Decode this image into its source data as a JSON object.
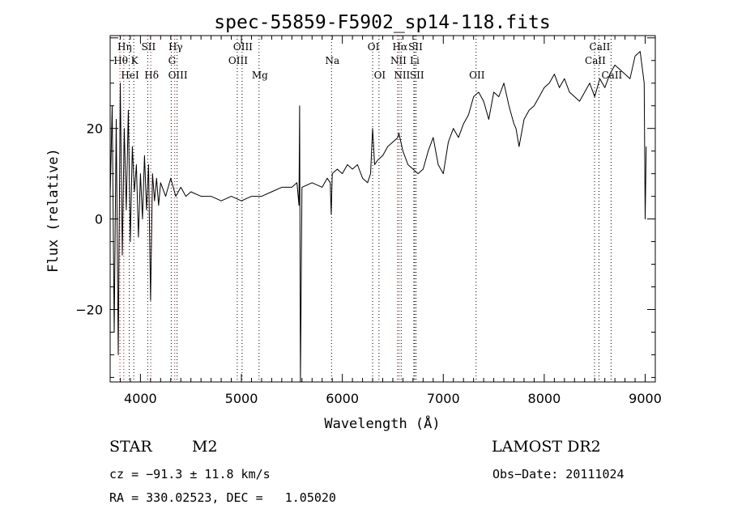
{
  "chart_data": {
    "type": "line",
    "title": "spec-55859-F5902_sp14-118.fits",
    "xlabel": "Wavelength (Å)",
    "ylabel": "Flux (relative)",
    "xlim": [
      3700,
      9100
    ],
    "ylim": [
      -36,
      40.5
    ],
    "x_ticks": [
      4000,
      5000,
      6000,
      7000,
      8000,
      9000
    ],
    "y_ticks": [
      -20,
      0,
      20
    ],
    "grid": false,
    "series": [
      {
        "x": [
          3700,
          3720,
          3740,
          3760,
          3780,
          3800,
          3820,
          3840,
          3860,
          3880,
          3900,
          3920,
          3940,
          3960,
          3980,
          4000,
          4020,
          4040,
          4060,
          4080,
          4100,
          4120,
          4140,
          4160,
          4180,
          4200,
          4250,
          4300,
          4350,
          4400,
          4450,
          4500,
          4600,
          4700,
          4800,
          4900,
          5000,
          5100,
          5200,
          5300,
          5400,
          5500,
          5550,
          5570,
          5577,
          5585,
          5600,
          5700,
          5800,
          5850,
          5880,
          5890,
          5900,
          5950,
          6000,
          6050,
          6100,
          6150,
          6200,
          6250,
          6280,
          6300,
          6320,
          6350,
          6400,
          6450,
          6500,
          6550,
          6560,
          6580,
          6600,
          6650,
          6700,
          6750,
          6800,
          6850,
          6900,
          6950,
          7000,
          7050,
          7100,
          7150,
          7200,
          7250,
          7300,
          7350,
          7400,
          7450,
          7500,
          7550,
          7600,
          7650,
          7700,
          7720,
          7750,
          7800,
          7850,
          7900,
          7950,
          8000,
          8050,
          8100,
          8150,
          8200,
          8250,
          8300,
          8350,
          8400,
          8450,
          8500,
          8550,
          8600,
          8650,
          8700,
          8750,
          8800,
          8850,
          8900,
          8950,
          8990,
          9000,
          9010
        ],
        "y": [
          5,
          25,
          -25,
          22,
          -30,
          30,
          -8,
          20,
          2,
          24,
          -5,
          16,
          6,
          12,
          -4,
          10,
          0,
          14,
          2,
          12,
          -18,
          10,
          4,
          9,
          3,
          8,
          5,
          9,
          5,
          7,
          5,
          6,
          5,
          5,
          4,
          5,
          4,
          5,
          5,
          6,
          7,
          7,
          8,
          3,
          25,
          -36,
          7,
          8,
          7,
          9,
          8,
          1,
          10,
          11,
          10,
          12,
          11,
          12,
          9,
          8,
          10,
          20,
          12,
          13,
          14,
          16,
          17,
          18,
          19,
          17,
          15,
          12,
          11,
          10,
          11,
          15,
          18,
          12,
          10,
          17,
          20,
          18,
          21,
          23,
          27,
          28,
          26,
          22,
          28,
          27,
          30,
          25,
          21,
          20,
          16,
          22,
          24,
          25,
          27,
          29,
          30,
          32,
          29,
          31,
          28,
          27,
          26,
          28,
          30,
          27,
          31,
          29,
          32,
          34,
          33,
          32,
          31,
          36,
          37,
          30,
          0,
          16
        ]
      }
    ],
    "lines": [
      {
        "label": "Hη",
        "x": 3835,
        "row": 1,
        "color": "#b00000"
      },
      {
        "label": "Hθ",
        "x": 3797,
        "row": 2,
        "color": "#b00000"
      },
      {
        "label": "K",
        "x": 3934,
        "row": 2,
        "color": "#000000"
      },
      {
        "label": "SII",
        "x": 4072,
        "row": 1,
        "color": "#000000"
      },
      {
        "label": "HeI",
        "x": 3889,
        "row": 3,
        "color": "#000000"
      },
      {
        "label": "Hδ",
        "x": 4102,
        "row": 3,
        "color": "#b00000"
      },
      {
        "label": "Hγ",
        "x": 4340,
        "row": 1,
        "color": "#b00000"
      },
      {
        "label": "G",
        "x": 4305,
        "row": 2,
        "color": "#000000"
      },
      {
        "label": "OIII",
        "x": 4363,
        "row": 3,
        "color": "#000000"
      },
      {
        "label": "OIII",
        "x": 5007,
        "row": 1,
        "color": "#000000"
      },
      {
        "label": "OIII",
        "x": 4959,
        "row": 2,
        "color": "#000000"
      },
      {
        "label": "Mg",
        "x": 5175,
        "row": 3,
        "color": "#000000"
      },
      {
        "label": "Na",
        "x": 5893,
        "row": 2,
        "color": "#000000"
      },
      {
        "label": "OI",
        "x": 6300,
        "row": 1,
        "color": "#000000"
      },
      {
        "label": "OI",
        "x": 6363,
        "row": 3,
        "color": "#000000"
      },
      {
        "label": "Hα",
        "x": 6563,
        "row": 1,
        "color": "#b00000"
      },
      {
        "label": "SII",
        "x": 6717,
        "row": 1,
        "color": "#000000"
      },
      {
        "label": "NII",
        "x": 6548,
        "row": 2,
        "color": "#000000"
      },
      {
        "label": "Li",
        "x": 6708,
        "row": 2,
        "color": "#000000"
      },
      {
        "label": "NII",
        "x": 6583,
        "row": 3,
        "color": "#000000"
      },
      {
        "label": "SII",
        "x": 6731,
        "row": 3,
        "color": "#000000"
      },
      {
        "label": "OII",
        "x": 7325,
        "row": 3,
        "color": "#000000"
      },
      {
        "label": "CaII",
        "x": 8542,
        "row": 1,
        "color": "#000000"
      },
      {
        "label": "CaII",
        "x": 8498,
        "row": 2,
        "color": "#000000"
      },
      {
        "label": "CaII",
        "x": 8662,
        "row": 3,
        "color": "#000000"
      }
    ]
  },
  "info": {
    "object_type": "STAR",
    "subclass": "M2",
    "survey": "LAMOST DR2",
    "cz": "cz = −91.3 ± 11.8 km/s",
    "obs_date": "Obs−Date: 20111024",
    "radec": "RA = 330.02523, DEC =   1.05020"
  }
}
